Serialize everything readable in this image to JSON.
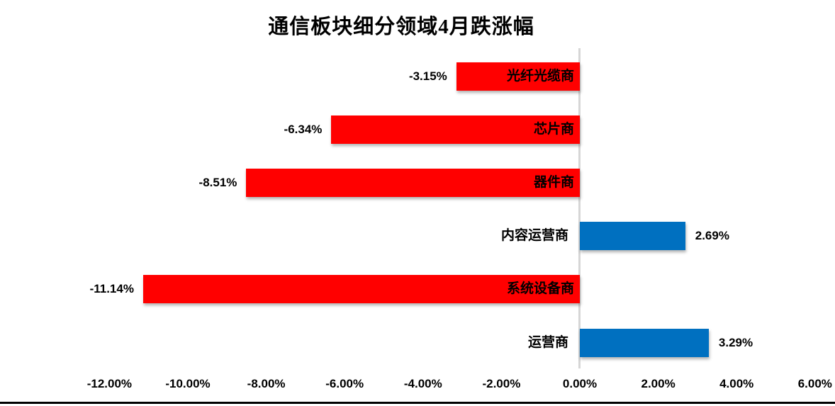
{
  "chart_data": {
    "type": "bar",
    "orientation": "horizontal",
    "title": "通信板块细分领域4月跌涨幅",
    "categories": [
      "光纤光缆商",
      "芯片商",
      "器件商",
      "内容运营商",
      "系统设备商",
      "运营商"
    ],
    "values": [
      -3.15,
      -6.34,
      -8.51,
      2.69,
      -11.14,
      3.29
    ],
    "value_labels": [
      "-3.15%",
      "-6.34%",
      "-8.51%",
      "2.69%",
      "-11.14%",
      "3.29%"
    ],
    "x_tick_values": [
      -12,
      -10,
      -8,
      -6,
      -4,
      -2,
      0,
      2,
      4,
      6
    ],
    "x_tick_labels": [
      "-12.00%",
      "-10.00%",
      "-8.00%",
      "-6.00%",
      "-4.00%",
      "-2.00%",
      "0.00%",
      "2.00%",
      "4.00%",
      "6.00%"
    ],
    "xlim": [
      -12,
      6
    ],
    "grid": "off",
    "legend": "none",
    "colors": {
      "negative_bar": "#FF0000",
      "positive_bar": "#0070C0",
      "axis_line": "#D6D6D6",
      "text": "#000000"
    }
  }
}
